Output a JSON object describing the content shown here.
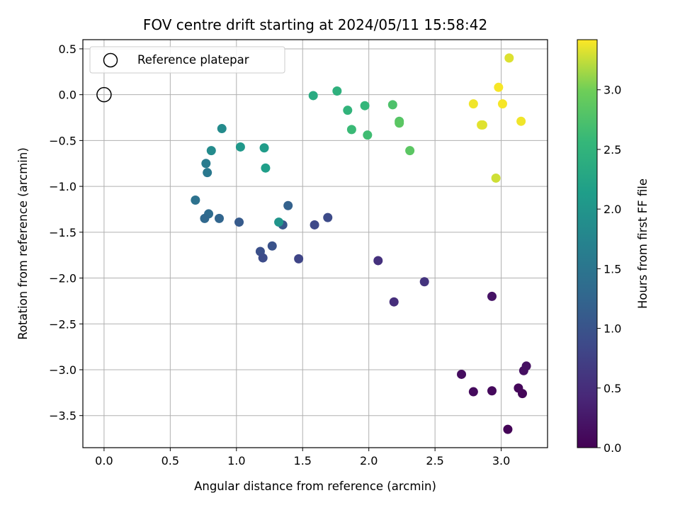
{
  "chart_data": {
    "type": "scatter",
    "title": "FOV centre drift starting at 2024/05/11 15:58:42",
    "xlabel": "Angular distance from reference (arcmin)",
    "ylabel": "Rotation from reference (arcmin)",
    "xlim": [
      -0.16,
      3.35
    ],
    "ylim": [
      -3.85,
      0.6
    ],
    "xticks": [
      0.0,
      0.5,
      1.0,
      1.5,
      2.0,
      2.5,
      3.0
    ],
    "xtick_labels": [
      "0.0",
      "0.5",
      "1.0",
      "1.5",
      "2.0",
      "2.5",
      "3.0"
    ],
    "yticks": [
      0.5,
      0.0,
      -0.5,
      -1.0,
      -1.5,
      -2.0,
      -2.5,
      -3.0,
      -3.5
    ],
    "ytick_labels": [
      "0.5",
      "0.0",
      "−0.5",
      "−1.0",
      "−1.5",
      "−2.0",
      "−2.5",
      "−3.0",
      "−3.5"
    ],
    "grid": true,
    "legend": {
      "position": "top-left",
      "entries": [
        "Reference platepar"
      ]
    },
    "reference_point": {
      "x": 0.0,
      "y": 0.0
    },
    "colorbar": {
      "label": "Hours from first FF file",
      "colormap": "viridis",
      "range": [
        0.0,
        3.42
      ],
      "ticks": [
        0.0,
        0.5,
        1.0,
        1.5,
        2.0,
        2.5,
        3.0
      ],
      "tick_labels": [
        "0.0",
        "0.5",
        "1.0",
        "1.5",
        "2.0",
        "2.5",
        "3.0"
      ]
    },
    "points": [
      {
        "x": 3.05,
        "y": -3.65,
        "c": 0.03
      },
      {
        "x": 3.16,
        "y": -3.26,
        "c": 0.05
      },
      {
        "x": 3.13,
        "y": -3.2,
        "c": 0.07
      },
      {
        "x": 2.93,
        "y": -3.23,
        "c": 0.09
      },
      {
        "x": 2.79,
        "y": -3.24,
        "c": 0.11
      },
      {
        "x": 2.7,
        "y": -3.05,
        "c": 0.13
      },
      {
        "x": 3.17,
        "y": -3.01,
        "c": 0.15
      },
      {
        "x": 3.19,
        "y": -2.96,
        "c": 0.17
      },
      {
        "x": 2.93,
        "y": -2.2,
        "c": 0.2
      },
      {
        "x": 2.19,
        "y": -2.26,
        "c": 0.5
      },
      {
        "x": 2.42,
        "y": -2.04,
        "c": 0.58
      },
      {
        "x": 2.07,
        "y": -1.81,
        "c": 0.55
      },
      {
        "x": 1.47,
        "y": -1.79,
        "c": 0.8
      },
      {
        "x": 1.69,
        "y": -1.34,
        "c": 0.88
      },
      {
        "x": 1.59,
        "y": -1.42,
        "c": 0.85
      },
      {
        "x": 1.18,
        "y": -1.71,
        "c": 0.95
      },
      {
        "x": 1.2,
        "y": -1.78,
        "c": 0.9
      },
      {
        "x": 1.27,
        "y": -1.65,
        "c": 0.98
      },
      {
        "x": 1.35,
        "y": -1.42,
        "c": 1.05
      },
      {
        "x": 1.39,
        "y": -1.21,
        "c": 1.2
      },
      {
        "x": 1.02,
        "y": -1.39,
        "c": 1.1
      },
      {
        "x": 0.87,
        "y": -1.35,
        "c": 1.25
      },
      {
        "x": 0.79,
        "y": -1.3,
        "c": 1.35
      },
      {
        "x": 0.76,
        "y": -1.35,
        "c": 1.3
      },
      {
        "x": 0.69,
        "y": -1.15,
        "c": 1.45
      },
      {
        "x": 0.78,
        "y": -0.85,
        "c": 1.55
      },
      {
        "x": 0.77,
        "y": -0.75,
        "c": 1.6
      },
      {
        "x": 0.81,
        "y": -0.61,
        "c": 1.85
      },
      {
        "x": 0.89,
        "y": -0.37,
        "c": 1.85
      },
      {
        "x": 1.03,
        "y": -0.57,
        "c": 2.05
      },
      {
        "x": 1.21,
        "y": -0.58,
        "c": 2.1
      },
      {
        "x": 1.22,
        "y": -0.8,
        "c": 2.15
      },
      {
        "x": 1.32,
        "y": -1.39,
        "c": 2.0
      },
      {
        "x": 1.58,
        "y": -0.01,
        "c": 2.35
      },
      {
        "x": 1.76,
        "y": 0.04,
        "c": 2.45
      },
      {
        "x": 1.84,
        "y": -0.17,
        "c": 2.5
      },
      {
        "x": 1.97,
        "y": -0.12,
        "c": 2.55
      },
      {
        "x": 1.87,
        "y": -0.38,
        "c": 2.6
      },
      {
        "x": 1.99,
        "y": -0.44,
        "c": 2.65
      },
      {
        "x": 2.18,
        "y": -0.11,
        "c": 2.75
      },
      {
        "x": 2.23,
        "y": -0.29,
        "c": 2.8
      },
      {
        "x": 2.23,
        "y": -0.31,
        "c": 2.85
      },
      {
        "x": 2.31,
        "y": -0.61,
        "c": 2.85
      },
      {
        "x": 2.79,
        "y": -0.1,
        "c": 3.38
      },
      {
        "x": 2.85,
        "y": -0.33,
        "c": 3.35
      },
      {
        "x": 2.86,
        "y": -0.33,
        "c": 3.33
      },
      {
        "x": 2.96,
        "y": -0.91,
        "c": 3.28
      },
      {
        "x": 2.98,
        "y": 0.08,
        "c": 3.4
      },
      {
        "x": 3.01,
        "y": -0.1,
        "c": 3.4
      },
      {
        "x": 3.06,
        "y": 0.4,
        "c": 3.32
      },
      {
        "x": 3.15,
        "y": -0.29,
        "c": 3.38
      }
    ]
  }
}
